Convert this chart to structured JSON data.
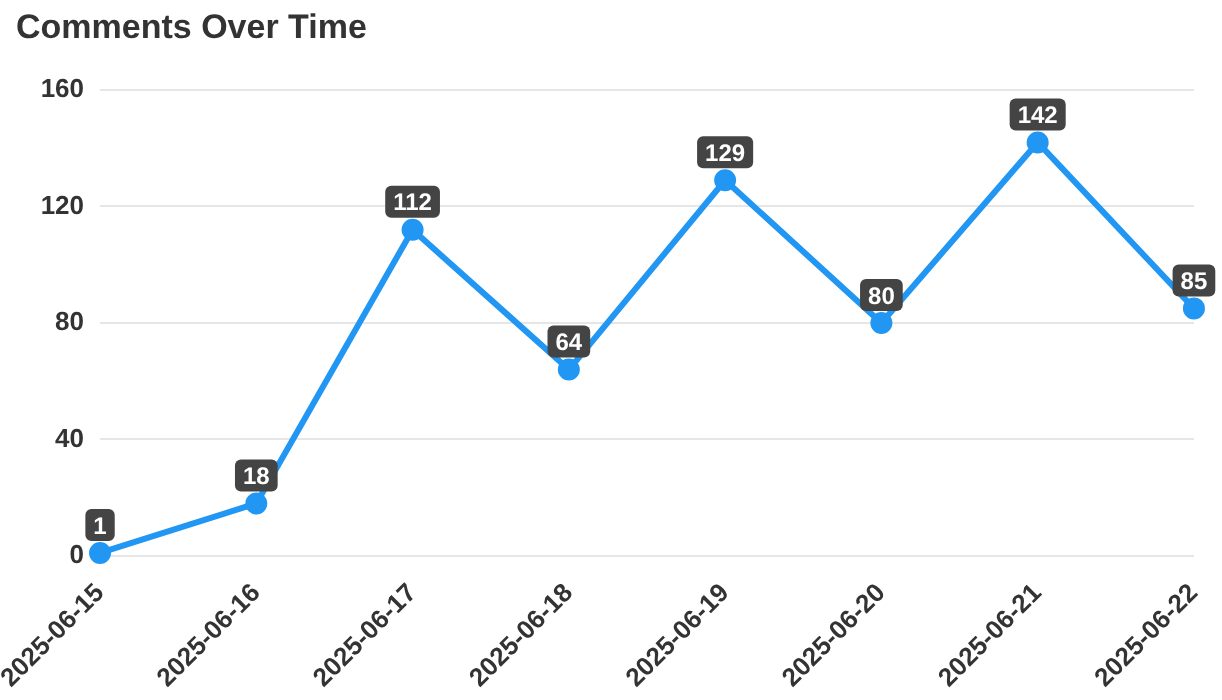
{
  "chart_data": {
    "type": "line",
    "title": "Comments Over Time",
    "categories": [
      "2025-06-15",
      "2025-06-16",
      "2025-06-17",
      "2025-06-18",
      "2025-06-19",
      "2025-06-20",
      "2025-06-21",
      "2025-06-22"
    ],
    "series": [
      {
        "color": "#2196f3",
        "values": [
          1,
          18,
          112,
          64,
          129,
          80,
          142,
          85
        ]
      }
    ],
    "ylim": [
      0,
      160
    ],
    "yticks": [
      0,
      40,
      80,
      120,
      160
    ],
    "grid": "y",
    "marker": "circle",
    "line_style": "solid",
    "data_labels": true,
    "legend": false
  }
}
